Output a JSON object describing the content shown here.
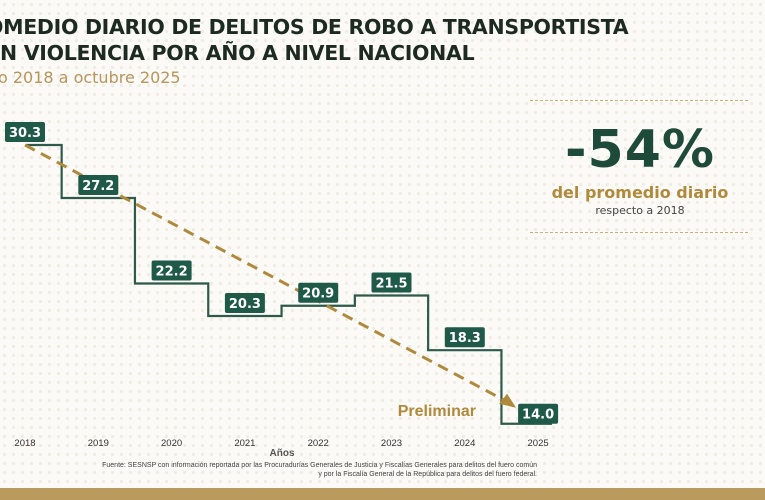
{
  "title_line1": "OMEDIO DIARIO DE DELITOS DE ROBO A TRANSPORTISTA",
  "title_line2": "N VIOLENCIA POR AÑO A NIVEL NACIONAL",
  "subtitle": "o 2018 a octubre 2025",
  "kpi": {
    "value": "-54%",
    "label": "del promedio diario",
    "sublabel": "respecto a 2018"
  },
  "chart_data": {
    "type": "line",
    "style": "step",
    "categories": [
      "2018",
      "2019",
      "2020",
      "2021",
      "2022",
      "2023",
      "2024",
      "2025"
    ],
    "values": [
      30.3,
      27.2,
      22.2,
      20.3,
      20.9,
      21.5,
      18.3,
      14.0
    ],
    "value_labels": [
      "30.3",
      "27.2",
      "22.2",
      "20.3",
      "20.9",
      "21.5",
      "18.3",
      "14.0"
    ],
    "xlabel": "Años",
    "trend": "dashed downward arrow from 2018 to 2025",
    "annotation": "Preliminar",
    "grid": false,
    "colors": {
      "line": "#2d5a4a",
      "label_bg": "#1f5a48",
      "trend": "#b08a3c"
    }
  },
  "source_line1": "Fuente: SESNSP con información reportada por las Procuradurías Generales de Justicia y Fiscalías Generales para delitos del fuero común",
  "source_line2": "y por la Fiscalía General de la República para delitos del fuero federal."
}
